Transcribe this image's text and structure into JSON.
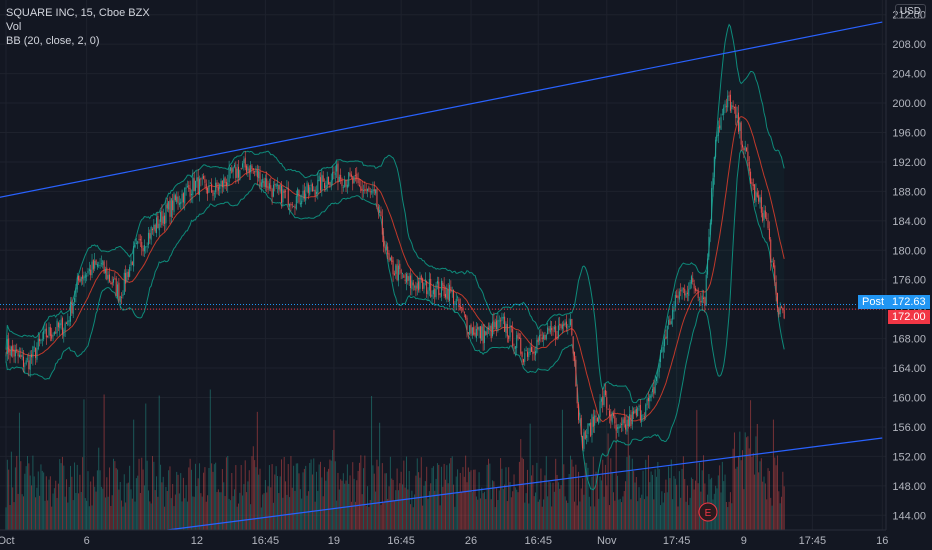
{
  "legend": {
    "symbol_line": "SQUARE INC, 15, Cboe BZX",
    "vol": "Vol",
    "bb": "BB (20, close, 2, 0)"
  },
  "currency": "USD",
  "post_label": "Post",
  "post_price": "172.63",
  "last_price": "172.00",
  "earnings_marker": "E",
  "colors": {
    "background": "#131722",
    "grid": "#1e222d",
    "up": "#26a69a",
    "down": "#ef5350",
    "trendline": "#2962ff",
    "band": "#0e8a7a",
    "basis": "#c0392b",
    "post_tag": "#2196f3",
    "last_tag": "#f23645"
  },
  "chart_data": {
    "type": "candlestick",
    "title": "SQUARE INC, 15, Cboe BZX",
    "y_ticks": [
      212,
      208,
      204,
      200,
      196,
      192,
      188,
      184,
      180,
      176,
      172,
      168,
      164,
      160,
      156,
      152,
      148,
      144
    ],
    "ylim": [
      142,
      214
    ],
    "x_ticks": [
      {
        "label": "Oct",
        "bar": 0
      },
      {
        "label": "6",
        "bar": 60
      },
      {
        "label": "12",
        "bar": 142
      },
      {
        "label": "16:45",
        "bar": 193
      },
      {
        "label": "19",
        "bar": 244
      },
      {
        "label": "16:45",
        "bar": 294
      },
      {
        "label": "26",
        "bar": 346
      },
      {
        "label": "16:45",
        "bar": 396
      },
      {
        "label": "Nov",
        "bar": 447
      },
      {
        "label": "17:45",
        "bar": 499
      },
      {
        "label": "9",
        "bar": 549
      },
      {
        "label": "17:45",
        "bar": 600
      },
      {
        "label": "16",
        "bar": 652
      }
    ],
    "bar_count": 580,
    "price_anchors": [
      [
        0,
        167.0
      ],
      [
        15,
        164.5
      ],
      [
        30,
        168.5
      ],
      [
        45,
        170.0
      ],
      [
        55,
        176.5
      ],
      [
        70,
        178.0
      ],
      [
        85,
        174.0
      ],
      [
        95,
        179.5
      ],
      [
        110,
        183.0
      ],
      [
        125,
        186.5
      ],
      [
        140,
        189.0
      ],
      [
        155,
        188.0
      ],
      [
        170,
        190.5
      ],
      [
        180,
        191.5
      ],
      [
        200,
        188.0
      ],
      [
        215,
        187.0
      ],
      [
        230,
        188.5
      ],
      [
        245,
        190.5
      ],
      [
        260,
        189.0
      ],
      [
        275,
        187.0
      ],
      [
        285,
        178.0
      ],
      [
        300,
        175.5
      ],
      [
        315,
        175.0
      ],
      [
        330,
        174.5
      ],
      [
        345,
        169.5
      ],
      [
        355,
        168.5
      ],
      [
        370,
        170.0
      ],
      [
        385,
        166.0
      ],
      [
        395,
        167.5
      ],
      [
        410,
        169.0
      ],
      [
        420,
        171.0
      ],
      [
        428,
        154.0
      ],
      [
        435,
        156.0
      ],
      [
        445,
        160.0
      ],
      [
        455,
        155.0
      ],
      [
        465,
        157.0
      ],
      [
        480,
        159.5
      ],
      [
        490,
        168.0
      ],
      [
        500,
        174.0
      ],
      [
        510,
        175.5
      ],
      [
        520,
        173.5
      ],
      [
        528,
        196.0
      ],
      [
        538,
        200.5
      ],
      [
        548,
        195.0
      ],
      [
        556,
        188.0
      ],
      [
        566,
        184.0
      ],
      [
        574,
        172.0
      ],
      [
        580,
        172.0
      ]
    ],
    "upper_trendline": [
      {
        "bar": -10,
        "price": 187.0
      },
      {
        "bar": 652,
        "price": 211.0
      }
    ],
    "lower_trendline": [
      {
        "bar": 120,
        "price": 142.0
      },
      {
        "bar": 652,
        "price": 154.5
      }
    ],
    "bollinger": {
      "period": 20,
      "source": "close",
      "mult": 2,
      "offset": 0
    },
    "volume": {
      "max_visible": 1.0
    }
  }
}
